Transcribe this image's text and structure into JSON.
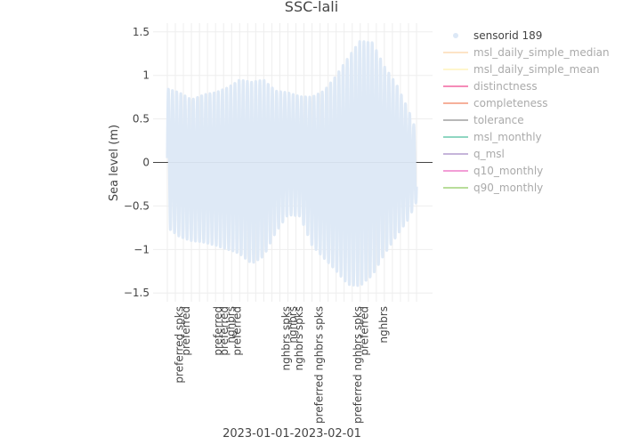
{
  "chart_data": {
    "type": "line",
    "title": "SSC-lali",
    "xlabel": "2023-01-01-2023-02-01",
    "ylabel": "Sea level (m)",
    "ylim": [
      -1.6,
      1.6
    ],
    "yticks": [
      1.5,
      1,
      0.5,
      0,
      -0.5,
      -1,
      -1.5
    ],
    "ytick_labels": [
      "1.5",
      "1",
      "0.5",
      "0",
      "−0.5",
      "−1",
      "−1.5"
    ],
    "grid": true,
    "legend_position": "right",
    "colors": {
      "sensor": "#dce8f6",
      "msl_daily_simple_median": "#fde4c6",
      "msl_daily_simple_mean": "#fff6cc",
      "distinctness": "#f58bb8",
      "completeness": "#f6b09a",
      "tolerance": "#b8b8b8",
      "msl_monthly": "#8fd6c1",
      "q_msl": "#c6b5da",
      "q10_monthly": "#f29ed6",
      "q90_monthly": "#b8dd9a"
    },
    "series": [
      {
        "name": "sensorid 189",
        "style": "points",
        "key": "sensor",
        "legend_active": true,
        "envelope": [
          {
            "day": 0,
            "high": 0.85,
            "low": -0.75
          },
          {
            "day": 1.5,
            "high": 0.8,
            "low": -0.85
          },
          {
            "day": 3,
            "high": 0.72,
            "low": -0.9
          },
          {
            "day": 4.5,
            "high": 0.78,
            "low": -0.92
          },
          {
            "day": 6,
            "high": 0.8,
            "low": -0.95
          },
          {
            "day": 7.5,
            "high": 0.86,
            "low": -1.0
          },
          {
            "day": 9,
            "high": 0.95,
            "low": -1.05
          },
          {
            "day": 10.5,
            "high": 0.92,
            "low": -1.16
          },
          {
            "day": 12,
            "high": 0.95,
            "low": -1.08
          },
          {
            "day": 13.5,
            "high": 0.82,
            "low": -0.8
          },
          {
            "day": 15,
            "high": 0.8,
            "low": -0.6
          },
          {
            "day": 16.5,
            "high": 0.76,
            "low": -0.62
          },
          {
            "day": 18,
            "high": 0.75,
            "low": -0.95
          },
          {
            "day": 19.5,
            "high": 0.82,
            "low": -1.1
          },
          {
            "day": 21,
            "high": 1.0,
            "low": -1.25
          },
          {
            "day": 22.5,
            "high": 1.2,
            "low": -1.4
          },
          {
            "day": 24,
            "high": 1.4,
            "low": -1.42
          },
          {
            "day": 25.5,
            "high": 1.38,
            "low": -1.3
          },
          {
            "day": 27,
            "high": 1.1,
            "low": -1.05
          },
          {
            "day": 28.5,
            "high": 0.9,
            "low": -0.85
          },
          {
            "day": 30,
            "high": 0.6,
            "low": -0.65
          },
          {
            "day": 31,
            "high": 0.35,
            "low": -0.45
          }
        ]
      },
      {
        "name": "msl_daily_simple_median",
        "style": "line",
        "key": "msl_daily_simple_median",
        "legend_active": false,
        "values": []
      },
      {
        "name": "msl_daily_simple_mean",
        "style": "line",
        "key": "msl_daily_simple_mean",
        "legend_active": false,
        "values": []
      },
      {
        "name": "distinctness",
        "style": "line",
        "key": "distinctness",
        "legend_active": false,
        "values": []
      },
      {
        "name": "completeness",
        "style": "line",
        "key": "completeness",
        "legend_active": false,
        "values": []
      },
      {
        "name": "tolerance",
        "style": "line",
        "key": "tolerance",
        "legend_active": false,
        "values": []
      },
      {
        "name": "msl_monthly",
        "style": "line",
        "key": "msl_monthly",
        "legend_active": false,
        "values": []
      },
      {
        "name": "q_msl",
        "style": "line",
        "key": "q_msl",
        "legend_active": false,
        "values": []
      },
      {
        "name": "q10_monthly",
        "style": "line",
        "key": "q10_monthly",
        "legend_active": false,
        "values": []
      },
      {
        "name": "q90_monthly",
        "style": "line",
        "key": "q90_monthly",
        "legend_active": false,
        "values": []
      }
    ],
    "x_domain_days": [
      0,
      31
    ],
    "x_category_labels": [
      {
        "day": 1.5,
        "text": "preferred spks"
      },
      {
        "day": 2.3,
        "text": "preferred"
      },
      {
        "day": 6.3,
        "text": "preferred"
      },
      {
        "day": 7.1,
        "text": "preferred"
      },
      {
        "day": 7.9,
        "text": "nghbrs"
      },
      {
        "day": 8.7,
        "text": "preferred"
      },
      {
        "day": 14.8,
        "text": "nghbrs spks"
      },
      {
        "day": 15.6,
        "text": "nghbrs"
      },
      {
        "day": 16.4,
        "text": "nghbrs spks"
      },
      {
        "day": 18.9,
        "text": "preferred nghbrs spks"
      },
      {
        "day": 23.7,
        "text": "preferred nghbrs spks"
      },
      {
        "day": 24.5,
        "text": "preferred"
      },
      {
        "day": 26.9,
        "text": "nghbrs"
      }
    ]
  }
}
